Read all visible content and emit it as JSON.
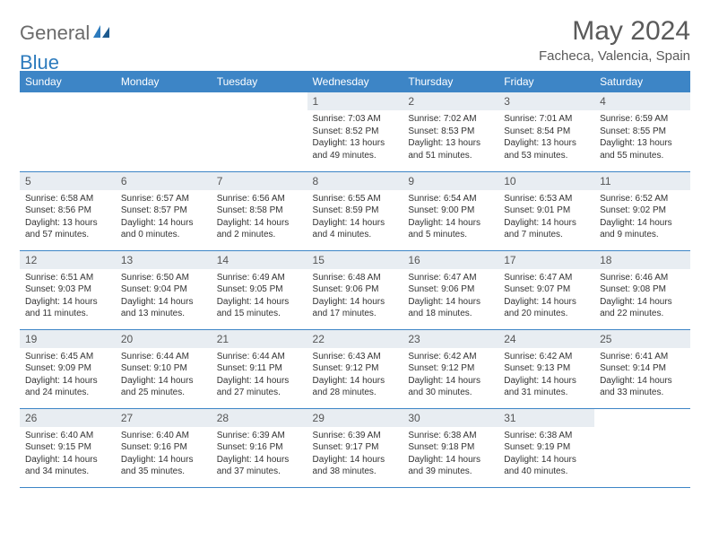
{
  "brand": {
    "part1": "General",
    "part2": "Blue"
  },
  "title": "May 2024",
  "location": "Facheca, Valencia, Spain",
  "colors": {
    "header_bg": "#3d85c6",
    "header_text": "#ffffff",
    "daynum_bg": "#e8edf2",
    "brand_gray": "#6b6b6b",
    "brand_blue": "#2d7bbd",
    "title_color": "#5a5a5a",
    "cell_border": "#3d85c6"
  },
  "day_headers": [
    "Sunday",
    "Monday",
    "Tuesday",
    "Wednesday",
    "Thursday",
    "Friday",
    "Saturday"
  ],
  "weeks": [
    [
      {
        "empty": true
      },
      {
        "empty": true
      },
      {
        "empty": true
      },
      {
        "num": "1",
        "sunrise": "7:03 AM",
        "sunset": "8:52 PM",
        "daylight": "13 hours and 49 minutes."
      },
      {
        "num": "2",
        "sunrise": "7:02 AM",
        "sunset": "8:53 PM",
        "daylight": "13 hours and 51 minutes."
      },
      {
        "num": "3",
        "sunrise": "7:01 AM",
        "sunset": "8:54 PM",
        "daylight": "13 hours and 53 minutes."
      },
      {
        "num": "4",
        "sunrise": "6:59 AM",
        "sunset": "8:55 PM",
        "daylight": "13 hours and 55 minutes."
      }
    ],
    [
      {
        "num": "5",
        "sunrise": "6:58 AM",
        "sunset": "8:56 PM",
        "daylight": "13 hours and 57 minutes."
      },
      {
        "num": "6",
        "sunrise": "6:57 AM",
        "sunset": "8:57 PM",
        "daylight": "14 hours and 0 minutes."
      },
      {
        "num": "7",
        "sunrise": "6:56 AM",
        "sunset": "8:58 PM",
        "daylight": "14 hours and 2 minutes."
      },
      {
        "num": "8",
        "sunrise": "6:55 AM",
        "sunset": "8:59 PM",
        "daylight": "14 hours and 4 minutes."
      },
      {
        "num": "9",
        "sunrise": "6:54 AM",
        "sunset": "9:00 PM",
        "daylight": "14 hours and 5 minutes."
      },
      {
        "num": "10",
        "sunrise": "6:53 AM",
        "sunset": "9:01 PM",
        "daylight": "14 hours and 7 minutes."
      },
      {
        "num": "11",
        "sunrise": "6:52 AM",
        "sunset": "9:02 PM",
        "daylight": "14 hours and 9 minutes."
      }
    ],
    [
      {
        "num": "12",
        "sunrise": "6:51 AM",
        "sunset": "9:03 PM",
        "daylight": "14 hours and 11 minutes."
      },
      {
        "num": "13",
        "sunrise": "6:50 AM",
        "sunset": "9:04 PM",
        "daylight": "14 hours and 13 minutes."
      },
      {
        "num": "14",
        "sunrise": "6:49 AM",
        "sunset": "9:05 PM",
        "daylight": "14 hours and 15 minutes."
      },
      {
        "num": "15",
        "sunrise": "6:48 AM",
        "sunset": "9:06 PM",
        "daylight": "14 hours and 17 minutes."
      },
      {
        "num": "16",
        "sunrise": "6:47 AM",
        "sunset": "9:06 PM",
        "daylight": "14 hours and 18 minutes."
      },
      {
        "num": "17",
        "sunrise": "6:47 AM",
        "sunset": "9:07 PM",
        "daylight": "14 hours and 20 minutes."
      },
      {
        "num": "18",
        "sunrise": "6:46 AM",
        "sunset": "9:08 PM",
        "daylight": "14 hours and 22 minutes."
      }
    ],
    [
      {
        "num": "19",
        "sunrise": "6:45 AM",
        "sunset": "9:09 PM",
        "daylight": "14 hours and 24 minutes."
      },
      {
        "num": "20",
        "sunrise": "6:44 AM",
        "sunset": "9:10 PM",
        "daylight": "14 hours and 25 minutes."
      },
      {
        "num": "21",
        "sunrise": "6:44 AM",
        "sunset": "9:11 PM",
        "daylight": "14 hours and 27 minutes."
      },
      {
        "num": "22",
        "sunrise": "6:43 AM",
        "sunset": "9:12 PM",
        "daylight": "14 hours and 28 minutes."
      },
      {
        "num": "23",
        "sunrise": "6:42 AM",
        "sunset": "9:12 PM",
        "daylight": "14 hours and 30 minutes."
      },
      {
        "num": "24",
        "sunrise": "6:42 AM",
        "sunset": "9:13 PM",
        "daylight": "14 hours and 31 minutes."
      },
      {
        "num": "25",
        "sunrise": "6:41 AM",
        "sunset": "9:14 PM",
        "daylight": "14 hours and 33 minutes."
      }
    ],
    [
      {
        "num": "26",
        "sunrise": "6:40 AM",
        "sunset": "9:15 PM",
        "daylight": "14 hours and 34 minutes."
      },
      {
        "num": "27",
        "sunrise": "6:40 AM",
        "sunset": "9:16 PM",
        "daylight": "14 hours and 35 minutes."
      },
      {
        "num": "28",
        "sunrise": "6:39 AM",
        "sunset": "9:16 PM",
        "daylight": "14 hours and 37 minutes."
      },
      {
        "num": "29",
        "sunrise": "6:39 AM",
        "sunset": "9:17 PM",
        "daylight": "14 hours and 38 minutes."
      },
      {
        "num": "30",
        "sunrise": "6:38 AM",
        "sunset": "9:18 PM",
        "daylight": "14 hours and 39 minutes."
      },
      {
        "num": "31",
        "sunrise": "6:38 AM",
        "sunset": "9:19 PM",
        "daylight": "14 hours and 40 minutes."
      },
      {
        "empty": true
      }
    ]
  ],
  "labels": {
    "sunrise_prefix": "Sunrise: ",
    "sunset_prefix": "Sunset: ",
    "daylight_prefix": "Daylight: "
  }
}
